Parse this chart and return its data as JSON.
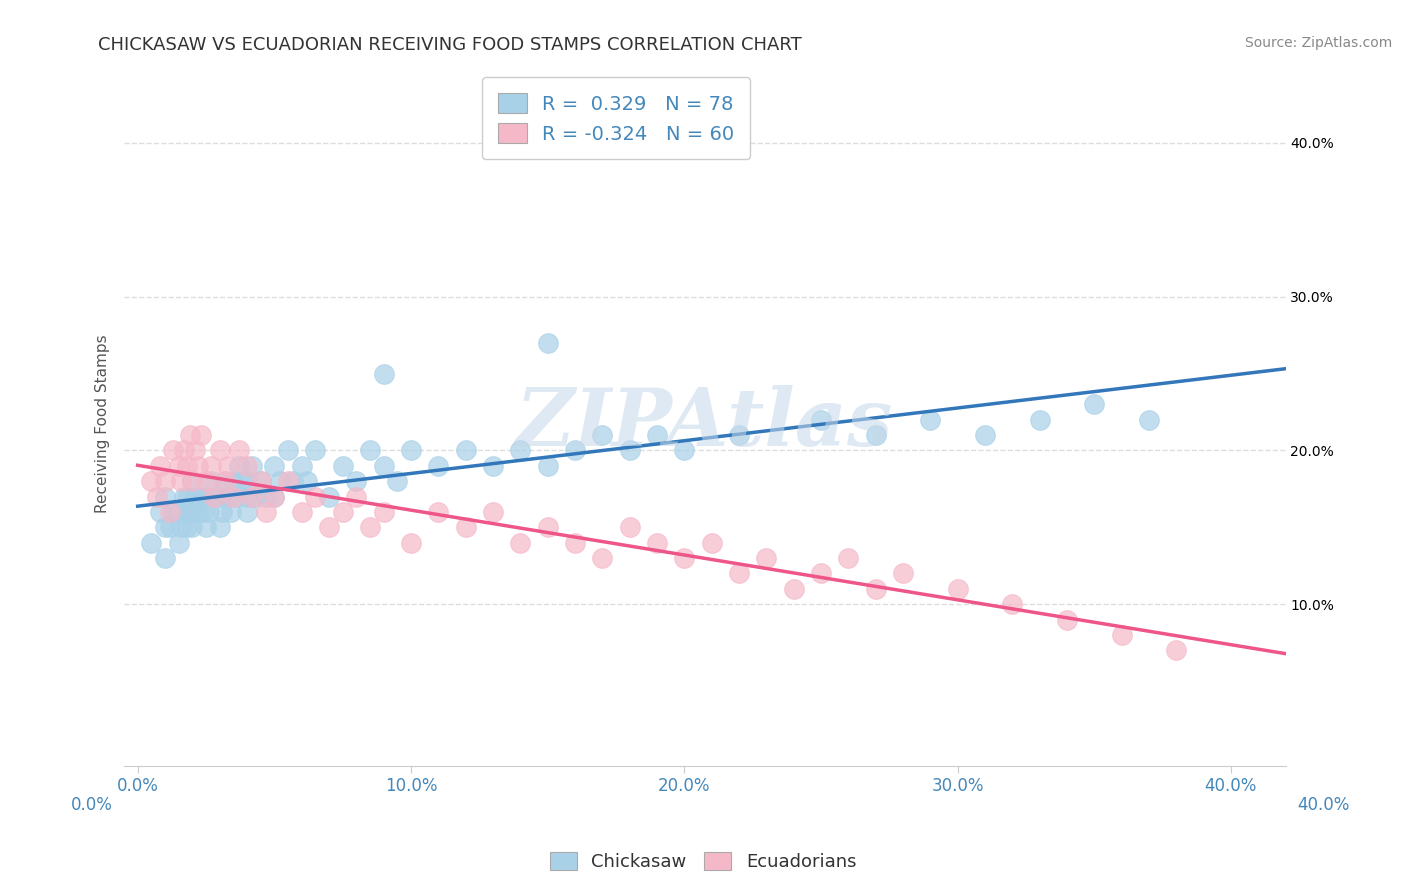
{
  "title": "CHICKASAW VS ECUADORIAN RECEIVING FOOD STAMPS CORRELATION CHART",
  "source": "Source: ZipAtlas.com",
  "ylabel": "Receiving Food Stamps",
  "xlim": [
    -0.005,
    0.42
  ],
  "ylim": [
    -0.005,
    0.44
  ],
  "ytick_values": [
    0.1,
    0.2,
    0.3,
    0.4
  ],
  "xtick_values": [
    0.0,
    0.1,
    0.2,
    0.3,
    0.4
  ],
  "chickasaw_color": "#a8d1e8",
  "ecuadorian_color": "#f5b8c8",
  "chickasaw_R": 0.329,
  "chickasaw_N": 78,
  "ecuadorian_R": -0.324,
  "ecuadorian_N": 60,
  "legend_label_1": "Chickasaw",
  "legend_label_2": "Ecuadorians",
  "watermark": "ZIPAtlas",
  "background_color": "#ffffff",
  "grid_color": "#dddddd",
  "title_color": "#333333",
  "axis_label_color": "#4488bb",
  "chickasaw_line_color": "#3377bb",
  "ecuadorian_line_color": "#ee5588",
  "chick_x": [
    0.005,
    0.008,
    0.01,
    0.01,
    0.01,
    0.012,
    0.013,
    0.015,
    0.015,
    0.016,
    0.017,
    0.018,
    0.018,
    0.019,
    0.02,
    0.02,
    0.02,
    0.021,
    0.022,
    0.023,
    0.024,
    0.025,
    0.025,
    0.026,
    0.027,
    0.028,
    0.03,
    0.03,
    0.031,
    0.032,
    0.033,
    0.034,
    0.035,
    0.036,
    0.037,
    0.038,
    0.04,
    0.04,
    0.04,
    0.042,
    0.043,
    0.045,
    0.047,
    0.05,
    0.05,
    0.052,
    0.055,
    0.057,
    0.06,
    0.062,
    0.065,
    0.07,
    0.075,
    0.08,
    0.085,
    0.09,
    0.095,
    0.1,
    0.11,
    0.12,
    0.13,
    0.14,
    0.15,
    0.16,
    0.17,
    0.18,
    0.19,
    0.2,
    0.22,
    0.25,
    0.27,
    0.29,
    0.31,
    0.33,
    0.35,
    0.37,
    0.15,
    0.09
  ],
  "chick_y": [
    0.14,
    0.16,
    0.15,
    0.17,
    0.13,
    0.15,
    0.16,
    0.14,
    0.16,
    0.15,
    0.17,
    0.15,
    0.17,
    0.16,
    0.15,
    0.16,
    0.18,
    0.17,
    0.16,
    0.17,
    0.16,
    0.15,
    0.17,
    0.16,
    0.18,
    0.17,
    0.15,
    0.17,
    0.16,
    0.18,
    0.17,
    0.16,
    0.18,
    0.17,
    0.19,
    0.18,
    0.16,
    0.18,
    0.17,
    0.19,
    0.17,
    0.18,
    0.17,
    0.19,
    0.17,
    0.18,
    0.2,
    0.18,
    0.19,
    0.18,
    0.2,
    0.17,
    0.19,
    0.18,
    0.2,
    0.19,
    0.18,
    0.2,
    0.19,
    0.2,
    0.19,
    0.2,
    0.19,
    0.2,
    0.21,
    0.2,
    0.21,
    0.2,
    0.21,
    0.22,
    0.21,
    0.22,
    0.21,
    0.22,
    0.23,
    0.22,
    0.27,
    0.25
  ],
  "ecua_x": [
    0.005,
    0.007,
    0.008,
    0.01,
    0.012,
    0.013,
    0.015,
    0.016,
    0.017,
    0.018,
    0.019,
    0.02,
    0.021,
    0.022,
    0.023,
    0.025,
    0.027,
    0.028,
    0.03,
    0.032,
    0.033,
    0.035,
    0.037,
    0.04,
    0.042,
    0.045,
    0.047,
    0.05,
    0.055,
    0.06,
    0.065,
    0.07,
    0.075,
    0.08,
    0.085,
    0.09,
    0.1,
    0.11,
    0.12,
    0.13,
    0.14,
    0.15,
    0.16,
    0.17,
    0.18,
    0.19,
    0.2,
    0.21,
    0.22,
    0.23,
    0.24,
    0.25,
    0.26,
    0.27,
    0.28,
    0.3,
    0.32,
    0.34,
    0.36,
    0.38
  ],
  "ecua_y": [
    0.18,
    0.17,
    0.19,
    0.18,
    0.16,
    0.2,
    0.19,
    0.18,
    0.2,
    0.19,
    0.21,
    0.18,
    0.2,
    0.19,
    0.21,
    0.18,
    0.19,
    0.17,
    0.2,
    0.18,
    0.19,
    0.17,
    0.2,
    0.19,
    0.17,
    0.18,
    0.16,
    0.17,
    0.18,
    0.16,
    0.17,
    0.15,
    0.16,
    0.17,
    0.15,
    0.16,
    0.14,
    0.16,
    0.15,
    0.16,
    0.14,
    0.15,
    0.14,
    0.13,
    0.15,
    0.14,
    0.13,
    0.14,
    0.12,
    0.13,
    0.11,
    0.12,
    0.13,
    0.11,
    0.12,
    0.11,
    0.1,
    0.09,
    0.08,
    0.07
  ]
}
